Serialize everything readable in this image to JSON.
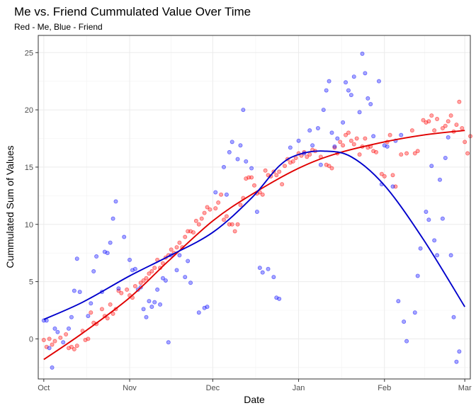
{
  "chart_data": {
    "type": "scatter",
    "title": "Me vs. Friend Cummulated Value Over Time",
    "subtitle": "Red - Me, Blue - Friend",
    "xlabel": "Date",
    "ylabel": "Cummulated Sum of Values",
    "x_ticks": [
      "Oct",
      "Nov",
      "Dec",
      "Jan",
      "Feb",
      "Mar"
    ],
    "x_tick_dates": [
      "2023-10-01",
      "2023-11-01",
      "2023-12-01",
      "2024-01-01",
      "2024-02-01",
      "2024-03-01"
    ],
    "xlim": [
      "2023-09-29",
      "2024-03-03"
    ],
    "y_ticks": [
      0,
      5,
      10,
      15,
      20,
      25
    ],
    "ylim": [
      -3.5,
      26.5
    ],
    "grid": true,
    "series": [
      {
        "color": "#ff0000",
        "points": [
          [
            "2023-10-01",
            -0.1
          ],
          [
            "2023-10-02",
            -0.7
          ],
          [
            "2023-10-03",
            0.0
          ],
          [
            "2023-10-04",
            -0.5
          ],
          [
            "2023-10-05",
            -0.2
          ],
          [
            "2023-10-07",
            0.1
          ],
          [
            "2023-10-09",
            0.4
          ],
          [
            "2023-10-10",
            -0.8
          ],
          [
            "2023-10-11",
            -0.7
          ],
          [
            "2023-10-12",
            -0.9
          ],
          [
            "2023-10-13",
            -0.6
          ],
          [
            "2023-10-15",
            0.7
          ],
          [
            "2023-10-16",
            -0.1
          ],
          [
            "2023-10-17",
            0.0
          ],
          [
            "2023-10-18",
            2.3
          ],
          [
            "2023-10-19",
            1.4
          ],
          [
            "2023-10-20",
            1.3
          ],
          [
            "2023-10-22",
            2.6
          ],
          [
            "2023-10-23",
            2.0
          ],
          [
            "2023-10-24",
            1.8
          ],
          [
            "2023-10-25",
            3.0
          ],
          [
            "2023-10-26",
            2.2
          ],
          [
            "2023-10-27",
            2.6
          ],
          [
            "2023-10-28",
            4.2
          ],
          [
            "2023-10-29",
            4.0
          ],
          [
            "2023-10-31",
            4.3
          ],
          [
            "2023-11-01",
            3.8
          ],
          [
            "2023-11-02",
            3.6
          ],
          [
            "2023-11-03",
            4.6
          ],
          [
            "2023-11-05",
            4.9
          ],
          [
            "2023-11-06",
            5.1
          ],
          [
            "2023-11-07",
            5.3
          ],
          [
            "2023-11-08",
            5.7
          ],
          [
            "2023-11-09",
            5.9
          ],
          [
            "2023-11-10",
            6.2
          ],
          [
            "2023-11-11",
            6.9
          ],
          [
            "2023-11-12",
            6.2
          ],
          [
            "2023-11-13",
            6.6
          ],
          [
            "2023-11-14",
            7.1
          ],
          [
            "2023-11-15",
            7.3
          ],
          [
            "2023-11-16",
            7.8
          ],
          [
            "2023-11-17",
            7.5
          ],
          [
            "2023-11-18",
            8.0
          ],
          [
            "2023-11-19",
            8.4
          ],
          [
            "2023-11-20",
            8.0
          ],
          [
            "2023-11-21",
            8.9
          ],
          [
            "2023-11-22",
            9.4
          ],
          [
            "2023-11-23",
            9.4
          ],
          [
            "2023-11-24",
            9.3
          ],
          [
            "2023-11-25",
            10.3
          ],
          [
            "2023-11-26",
            10.0
          ],
          [
            "2023-11-27",
            10.5
          ],
          [
            "2023-11-28",
            11.0
          ],
          [
            "2023-11-29",
            11.5
          ],
          [
            "2023-11-30",
            11.3
          ],
          [
            "2023-12-02",
            11.4
          ],
          [
            "2023-12-03",
            11.9
          ],
          [
            "2023-12-04",
            12.6
          ],
          [
            "2023-12-05",
            10.4
          ],
          [
            "2023-12-06",
            10.7
          ],
          [
            "2023-12-07",
            10.0
          ],
          [
            "2023-12-08",
            10.0
          ],
          [
            "2023-12-09",
            9.4
          ],
          [
            "2023-12-10",
            10.0
          ],
          [
            "2023-12-11",
            11.7
          ],
          [
            "2023-12-12",
            12.3
          ],
          [
            "2023-12-13",
            14.0
          ],
          [
            "2023-12-14",
            14.1
          ],
          [
            "2023-12-15",
            14.1
          ],
          [
            "2023-12-16",
            13.4
          ],
          [
            "2023-12-17",
            12.7
          ],
          [
            "2023-12-18",
            12.8
          ],
          [
            "2023-12-19",
            12.6
          ],
          [
            "2023-12-20",
            14.7
          ],
          [
            "2023-12-21",
            14.3
          ],
          [
            "2023-12-22",
            14.2
          ],
          [
            "2023-12-23",
            14.6
          ],
          [
            "2023-12-24",
            14.3
          ],
          [
            "2023-12-25",
            14.6
          ],
          [
            "2023-12-26",
            13.5
          ],
          [
            "2023-12-27",
            15.1
          ],
          [
            "2023-12-28",
            15.7
          ],
          [
            "2023-12-29",
            15.4
          ],
          [
            "2023-12-30",
            15.5
          ],
          [
            "2023-12-31",
            15.8
          ],
          [
            "2024-01-01",
            16.2
          ],
          [
            "2024-01-02",
            16.0
          ],
          [
            "2024-01-03",
            16.3
          ],
          [
            "2024-01-04",
            15.9
          ],
          [
            "2024-01-05",
            16.1
          ],
          [
            "2024-01-06",
            16.5
          ],
          [
            "2024-01-07",
            16.4
          ],
          [
            "2024-01-09",
            15.9
          ],
          [
            "2024-01-11",
            15.2
          ],
          [
            "2024-01-12",
            15.1
          ],
          [
            "2024-01-13",
            14.9
          ],
          [
            "2024-01-14",
            16.7
          ],
          [
            "2024-01-15",
            16.2
          ],
          [
            "2024-01-16",
            17.2
          ],
          [
            "2024-01-17",
            16.9
          ],
          [
            "2024-01-18",
            17.8
          ],
          [
            "2024-01-19",
            18.0
          ],
          [
            "2024-01-20",
            17.3
          ],
          [
            "2024-01-21",
            17.0
          ],
          [
            "2024-01-22",
            17.5
          ],
          [
            "2024-01-23",
            16.1
          ],
          [
            "2024-01-24",
            16.8
          ],
          [
            "2024-01-25",
            17.5
          ],
          [
            "2024-01-26",
            16.7
          ],
          [
            "2024-01-27",
            16.8
          ],
          [
            "2024-01-28",
            16.4
          ],
          [
            "2024-01-29",
            16.3
          ],
          [
            "2024-01-31",
            14.4
          ],
          [
            "2024-02-01",
            14.2
          ],
          [
            "2024-02-02",
            17.2
          ],
          [
            "2024-02-03",
            17.8
          ],
          [
            "2024-02-04",
            14.3
          ],
          [
            "2024-02-05",
            13.3
          ],
          [
            "2024-02-07",
            16.1
          ],
          [
            "2024-02-09",
            16.2
          ],
          [
            "2024-02-11",
            18.2
          ],
          [
            "2024-02-12",
            16.2
          ],
          [
            "2024-02-13",
            16.4
          ],
          [
            "2024-02-15",
            19.1
          ],
          [
            "2024-02-16",
            18.9
          ],
          [
            "2024-02-17",
            19.0
          ],
          [
            "2024-02-18",
            19.5
          ],
          [
            "2024-02-19",
            18.2
          ],
          [
            "2024-02-20",
            19.2
          ],
          [
            "2024-02-22",
            18.4
          ],
          [
            "2024-02-23",
            18.6
          ],
          [
            "2024-02-24",
            19.0
          ],
          [
            "2024-02-25",
            19.5
          ],
          [
            "2024-02-26",
            18.1
          ],
          [
            "2024-02-27",
            18.7
          ],
          [
            "2024-02-28",
            20.7
          ],
          [
            "2024-02-29",
            18.4
          ],
          [
            "2024-03-01",
            17.2
          ],
          [
            "2024-03-02",
            16.2
          ],
          [
            "2024-03-03",
            17.7
          ]
        ],
        "trend": [
          [
            "2023-10-01",
            -1.8
          ],
          [
            "2023-10-15",
            0.5
          ],
          [
            "2023-11-01",
            3.6
          ],
          [
            "2023-11-15",
            6.8
          ],
          [
            "2023-12-01",
            10.3
          ],
          [
            "2023-12-15",
            12.6
          ],
          [
            "2024-01-01",
            14.9
          ],
          [
            "2024-01-15",
            16.2
          ],
          [
            "2024-02-01",
            17.2
          ],
          [
            "2024-02-15",
            17.8
          ],
          [
            "2024-03-01",
            18.2
          ]
        ]
      },
      {
        "color": "#0000ff",
        "points": [
          [
            "2023-10-01",
            1.6
          ],
          [
            "2023-10-02",
            1.6
          ],
          [
            "2023-10-03",
            -0.8
          ],
          [
            "2023-10-04",
            -2.5
          ],
          [
            "2023-10-05",
            0.9
          ],
          [
            "2023-10-06",
            0.6
          ],
          [
            "2023-10-08",
            -0.3
          ],
          [
            "2023-10-10",
            0.9
          ],
          [
            "2023-10-11",
            1.9
          ],
          [
            "2023-10-12",
            4.2
          ],
          [
            "2023-10-13",
            7.0
          ],
          [
            "2023-10-14",
            4.1
          ],
          [
            "2023-10-17",
            2.0
          ],
          [
            "2023-10-18",
            3.1
          ],
          [
            "2023-10-19",
            5.9
          ],
          [
            "2023-10-20",
            7.2
          ],
          [
            "2023-10-22",
            4.1
          ],
          [
            "2023-10-23",
            7.6
          ],
          [
            "2023-10-24",
            7.5
          ],
          [
            "2023-10-25",
            8.4
          ],
          [
            "2023-10-26",
            10.5
          ],
          [
            "2023-10-27",
            12.0
          ],
          [
            "2023-10-28",
            4.4
          ],
          [
            "2023-10-30",
            8.9
          ],
          [
            "2023-11-01",
            6.9
          ],
          [
            "2023-11-02",
            6.0
          ],
          [
            "2023-11-03",
            6.1
          ],
          [
            "2023-11-04",
            4.3
          ],
          [
            "2023-11-05",
            4.5
          ],
          [
            "2023-11-06",
            2.6
          ],
          [
            "2023-11-07",
            1.9
          ],
          [
            "2023-11-08",
            3.3
          ],
          [
            "2023-11-09",
            2.8
          ],
          [
            "2023-11-10",
            3.2
          ],
          [
            "2023-11-11",
            4.3
          ],
          [
            "2023-11-12",
            3.0
          ],
          [
            "2023-11-13",
            5.3
          ],
          [
            "2023-11-14",
            5.1
          ],
          [
            "2023-11-15",
            -0.3
          ],
          [
            "2023-11-16",
            7.3
          ],
          [
            "2023-11-18",
            6.0
          ],
          [
            "2023-11-19",
            7.3
          ],
          [
            "2023-11-21",
            5.4
          ],
          [
            "2023-11-22",
            6.8
          ],
          [
            "2023-11-23",
            4.9
          ],
          [
            "2023-11-26",
            2.3
          ],
          [
            "2023-11-28",
            2.7
          ],
          [
            "2023-11-29",
            2.8
          ],
          [
            "2023-12-02",
            12.8
          ],
          [
            "2023-12-05",
            15.0
          ],
          [
            "2023-12-06",
            12.6
          ],
          [
            "2023-12-07",
            16.3
          ],
          [
            "2023-12-08",
            17.2
          ],
          [
            "2023-12-10",
            15.7
          ],
          [
            "2023-12-11",
            16.9
          ],
          [
            "2023-12-12",
            20.0
          ],
          [
            "2023-12-13",
            15.5
          ],
          [
            "2023-12-15",
            14.9
          ],
          [
            "2023-12-17",
            11.1
          ],
          [
            "2023-12-18",
            6.2
          ],
          [
            "2023-12-19",
            5.8
          ],
          [
            "2023-12-21",
            6.1
          ],
          [
            "2023-12-23",
            5.4
          ],
          [
            "2023-12-24",
            3.6
          ],
          [
            "2023-12-25",
            3.5
          ],
          [
            "2023-12-29",
            16.7
          ],
          [
            "2024-01-01",
            17.3
          ],
          [
            "2024-01-03",
            16.2
          ],
          [
            "2024-01-05",
            18.2
          ],
          [
            "2024-01-06",
            16.9
          ],
          [
            "2024-01-08",
            18.4
          ],
          [
            "2024-01-09",
            15.2
          ],
          [
            "2024-01-10",
            20.0
          ],
          [
            "2024-01-11",
            21.7
          ],
          [
            "2024-01-12",
            22.5
          ],
          [
            "2024-01-13",
            18.0
          ],
          [
            "2024-01-14",
            16.8
          ],
          [
            "2024-01-15",
            17.5
          ],
          [
            "2024-01-17",
            18.9
          ],
          [
            "2024-01-18",
            22.4
          ],
          [
            "2024-01-19",
            21.7
          ],
          [
            "2024-01-20",
            21.3
          ],
          [
            "2024-01-21",
            22.9
          ],
          [
            "2024-01-23",
            19.8
          ],
          [
            "2024-01-24",
            24.9
          ],
          [
            "2024-01-25",
            23.2
          ],
          [
            "2024-01-26",
            21.0
          ],
          [
            "2024-01-27",
            20.5
          ],
          [
            "2024-01-28",
            17.7
          ],
          [
            "2024-01-30",
            22.5
          ],
          [
            "2024-01-31",
            13.5
          ],
          [
            "2024-02-01",
            16.9
          ],
          [
            "2024-02-02",
            16.8
          ],
          [
            "2024-02-04",
            13.3
          ],
          [
            "2024-02-05",
            17.3
          ],
          [
            "2024-02-06",
            3.3
          ],
          [
            "2024-02-07",
            17.8
          ],
          [
            "2024-02-08",
            1.5
          ],
          [
            "2024-02-09",
            -0.2
          ],
          [
            "2024-02-12",
            2.3
          ],
          [
            "2024-02-13",
            5.5
          ],
          [
            "2024-02-14",
            7.9
          ],
          [
            "2024-02-16",
            11.1
          ],
          [
            "2024-02-17",
            10.4
          ],
          [
            "2024-02-18",
            15.1
          ],
          [
            "2024-02-19",
            8.6
          ],
          [
            "2024-02-20",
            7.3
          ],
          [
            "2024-02-21",
            13.9
          ],
          [
            "2024-02-22",
            10.5
          ],
          [
            "2024-02-23",
            15.8
          ],
          [
            "2024-02-24",
            17.6
          ],
          [
            "2024-02-25",
            7.3
          ],
          [
            "2024-02-26",
            1.9
          ],
          [
            "2024-02-27",
            -2.0
          ],
          [
            "2024-02-28",
            -1.1
          ]
        ],
        "trend": [
          [
            "2023-10-01",
            1.7
          ],
          [
            "2023-10-15",
            3.2
          ],
          [
            "2023-11-01",
            5.5
          ],
          [
            "2023-11-15",
            7.2
          ],
          [
            "2023-12-01",
            9.3
          ],
          [
            "2023-12-15",
            12.3
          ],
          [
            "2023-12-25",
            15.1
          ],
          [
            "2024-01-01",
            16.1
          ],
          [
            "2024-01-10",
            16.4
          ],
          [
            "2024-01-20",
            15.9
          ],
          [
            "2024-02-01",
            13.4
          ],
          [
            "2024-02-15",
            8.7
          ],
          [
            "2024-03-01",
            2.8
          ]
        ]
      }
    ]
  }
}
